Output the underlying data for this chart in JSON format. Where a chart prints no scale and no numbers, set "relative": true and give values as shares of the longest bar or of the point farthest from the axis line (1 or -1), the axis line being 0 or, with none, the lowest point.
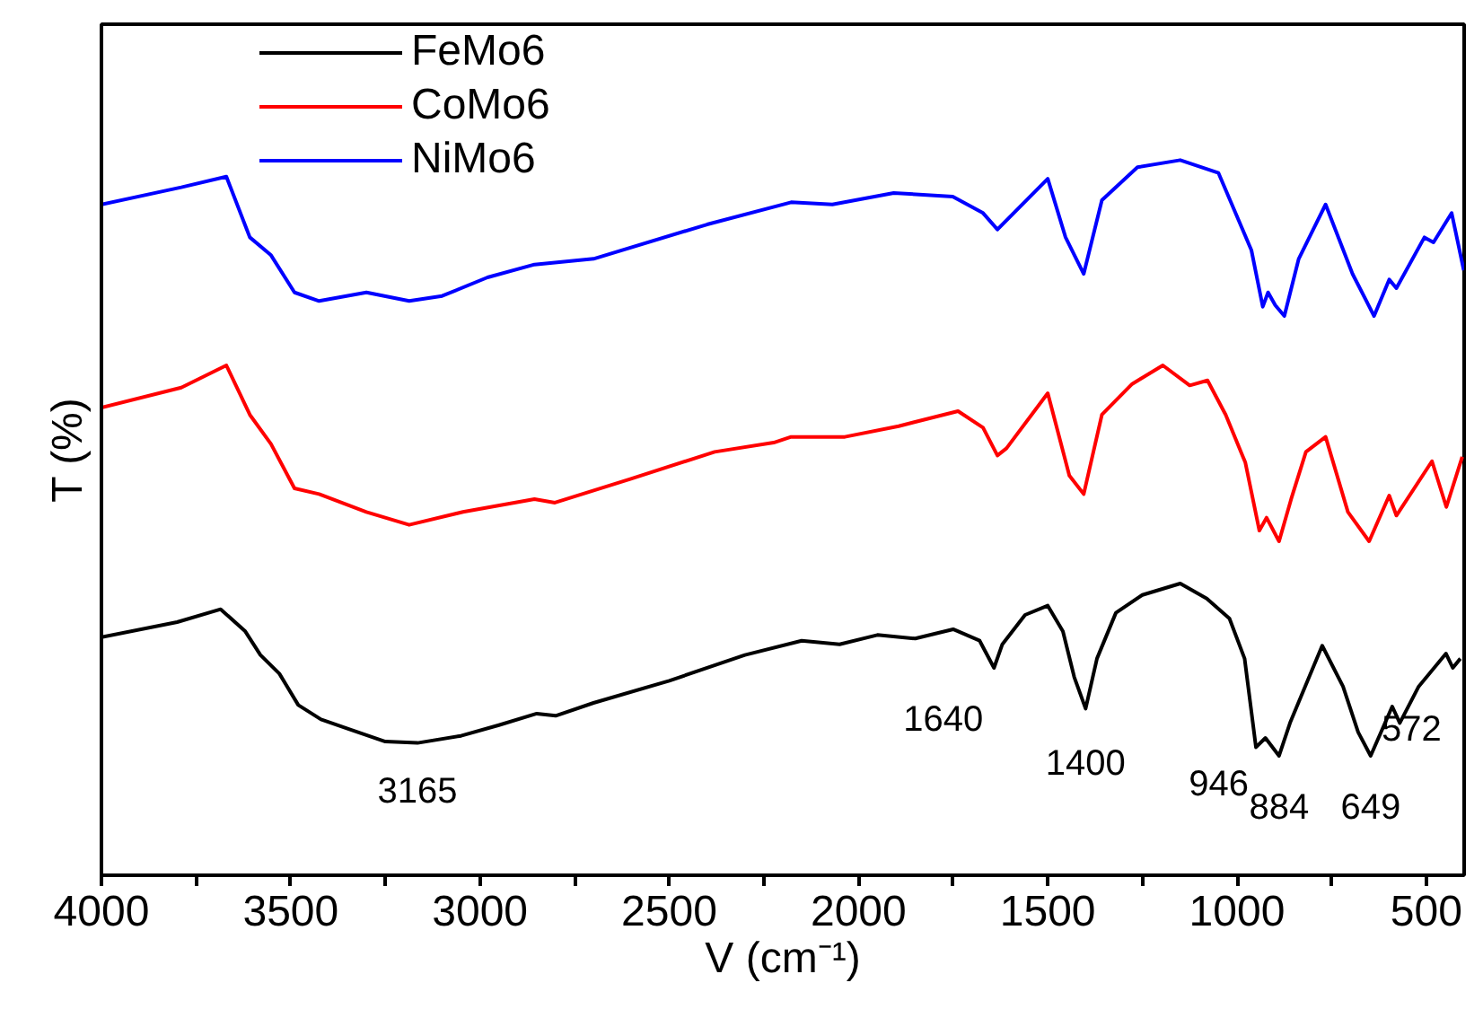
{
  "chart_data": {
    "type": "line",
    "relative": true,
    "xlabel": "V (cm⁻¹)",
    "ylabel": "T (%)",
    "xlim": [
      4000,
      400
    ],
    "xticks": [
      4000,
      {
        "value": 3750,
        "label": null
      },
      3500,
      {
        "value": 3250,
        "label": null
      },
      3000,
      {
        "value": 2750,
        "label": null
      },
      2500,
      {
        "value": 2250,
        "label": null
      },
      2000,
      {
        "value": 1750,
        "label": null
      },
      1500,
      {
        "value": 1250,
        "label": null
      },
      1000,
      {
        "value": 750,
        "label": null
      },
      500
    ],
    "grid": false,
    "legend": "top left",
    "line_style": "solid",
    "tick_labels": "x",
    "series": [
      {
        "name": "FeMo6",
        "color": "#000000",
        "x": [
          4000,
          3800,
          3685,
          3620,
          3580,
          3530,
          3480,
          3420,
          3350,
          3250,
          3165,
          3050,
          2950,
          2850,
          2800,
          2700,
          2500,
          2300,
          2150,
          2050,
          1950,
          1850,
          1750,
          1680,
          1642,
          1620,
          1560,
          1500,
          1460,
          1430,
          1400,
          1370,
          1320,
          1250,
          1150,
          1080,
          1020,
          980,
          950,
          925,
          889,
          860,
          820,
          775,
          720,
          680,
          647,
          590,
          570,
          520,
          448,
          430,
          410
        ],
        "values": [
          0.333,
          0.354,
          0.372,
          0.341,
          0.308,
          0.282,
          0.238,
          0.218,
          0.205,
          0.187,
          0.185,
          0.195,
          0.21,
          0.226,
          0.223,
          0.241,
          0.272,
          0.308,
          0.328,
          0.323,
          0.336,
          0.331,
          0.344,
          0.328,
          0.29,
          0.323,
          0.364,
          0.377,
          0.341,
          0.277,
          0.233,
          0.303,
          0.367,
          0.392,
          0.408,
          0.387,
          0.359,
          0.303,
          0.179,
          0.192,
          0.167,
          0.213,
          0.264,
          0.321,
          0.264,
          0.2,
          0.167,
          0.236,
          0.213,
          0.264,
          0.31,
          0.29,
          0.303
        ]
      },
      {
        "name": "CoMo6",
        "color": "#ff0000",
        "x": [
          4000,
          3789,
          3670,
          3608,
          3552,
          3490,
          3425,
          3300,
          3187,
          3045,
          2856,
          2802,
          2603,
          2380,
          2224,
          2178,
          2036,
          1894,
          1737,
          1671,
          1633,
          1609,
          1500,
          1443,
          1405,
          1357,
          1277,
          1196,
          1125,
          1078,
          1030,
          978,
          941,
          922,
          889,
          857,
          818,
          766,
          707,
          651,
          598,
          579,
          485,
          447,
          405
        ],
        "values": [
          0.654,
          0.682,
          0.713,
          0.644,
          0.603,
          0.541,
          0.533,
          0.508,
          0.49,
          0.508,
          0.526,
          0.521,
          0.554,
          0.592,
          0.605,
          0.613,
          0.613,
          0.628,
          0.649,
          0.626,
          0.587,
          0.597,
          0.674,
          0.559,
          0.533,
          0.644,
          0.687,
          0.713,
          0.685,
          0.692,
          0.644,
          0.577,
          0.482,
          0.5,
          0.467,
          0.526,
          0.592,
          0.613,
          0.508,
          0.467,
          0.531,
          0.503,
          0.579,
          0.515,
          0.585
        ]
      },
      {
        "name": "NiMo6",
        "color": "#0000ff",
        "x": [
          4000,
          3789,
          3670,
          3608,
          3552,
          3490,
          3425,
          3300,
          3187,
          3100,
          2980,
          2856,
          2700,
          2400,
          2178,
          2069,
          1907,
          1751,
          1671,
          1633,
          1500,
          1453,
          1405,
          1357,
          1263,
          1150,
          1049,
          962,
          932,
          918,
          899,
          875,
          837,
          766,
          695,
          638,
          598,
          579,
          505,
          481,
          433,
          401
        ],
        "values": [
          0.938,
          0.962,
          0.977,
          0.892,
          0.867,
          0.815,
          0.803,
          0.815,
          0.803,
          0.81,
          0.836,
          0.854,
          0.862,
          0.91,
          0.941,
          0.938,
          0.954,
          0.949,
          0.926,
          0.903,
          0.974,
          0.892,
          0.841,
          0.944,
          0.99,
          1.0,
          0.982,
          0.874,
          0.795,
          0.815,
          0.797,
          0.782,
          0.862,
          0.938,
          0.841,
          0.782,
          0.833,
          0.821,
          0.892,
          0.885,
          0.926,
          0.846
        ]
      }
    ],
    "annotations": [
      {
        "text": "3165",
        "x": 3165,
        "y": 0.185
      },
      {
        "text": "1640",
        "x": 1642,
        "y": 0.29
      },
      {
        "text": "1400",
        "x": 1400,
        "y": 0.233
      },
      {
        "text": "946",
        "x": 950,
        "y": 0.179
      },
      {
        "text": "884",
        "x": 889,
        "y": 0.167
      },
      {
        "text": "649",
        "x": 647,
        "y": 0.167
      },
      {
        "text": "572",
        "x": 590,
        "y": 0.236
      }
    ]
  }
}
